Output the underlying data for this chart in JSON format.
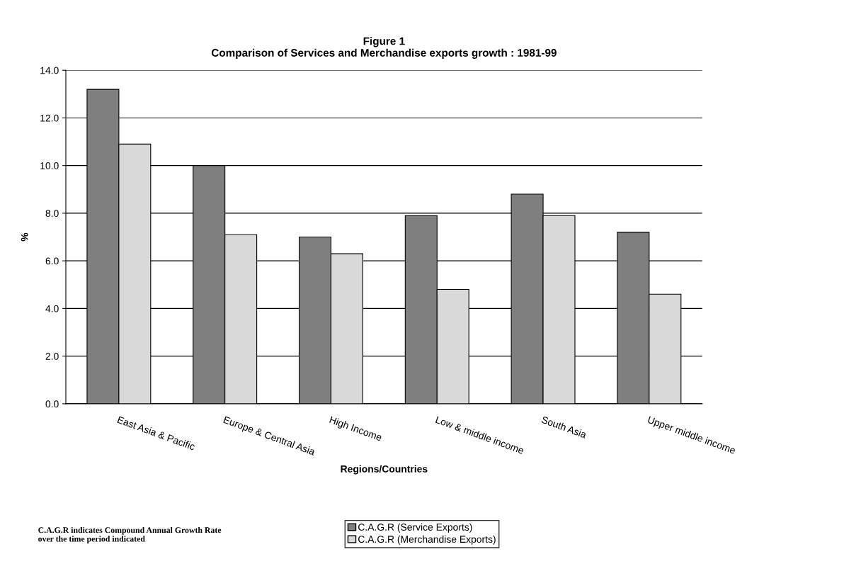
{
  "chart_data": {
    "type": "bar",
    "title": "Figure 1\nComparison of Services and Merchandise exports growth : 1981-99",
    "xlabel": "Regions/Countries",
    "ylabel": "%",
    "categories": [
      "East Asia & Pacific",
      "Europe & Central Asia",
      "High Income",
      "Low & middle income",
      "South Asia",
      "Upper middle income"
    ],
    "series": [
      {
        "name": "C.A.G.R (Service Exports)",
        "color": "#7f7f7f",
        "values": [
          13.2,
          10.0,
          7.0,
          7.9,
          8.8,
          7.2
        ]
      },
      {
        "name": "C.A.G.R (Merchandise Exports)",
        "color": "#d9d9d9",
        "values": [
          10.9,
          7.1,
          6.3,
          4.8,
          7.9,
          4.6
        ]
      }
    ],
    "ylim": [
      0,
      14
    ],
    "yticks": [
      {
        "value": 0,
        "label": "0.0"
      },
      {
        "value": 2,
        "label": "2.0"
      },
      {
        "value": 4,
        "label": "4.0"
      },
      {
        "value": 6,
        "label": "6.0"
      },
      {
        "value": 8,
        "label": "8.0"
      },
      {
        "value": 10,
        "label": "10.0"
      },
      {
        "value": 12,
        "label": "12.0"
      },
      {
        "value": 14,
        "label": "14.0"
      }
    ],
    "grid": "y",
    "legend": "bottom",
    "annotations": [
      "C.A.G.R indicates Compound Annual Growth Rate\nover the time period indicated"
    ]
  }
}
